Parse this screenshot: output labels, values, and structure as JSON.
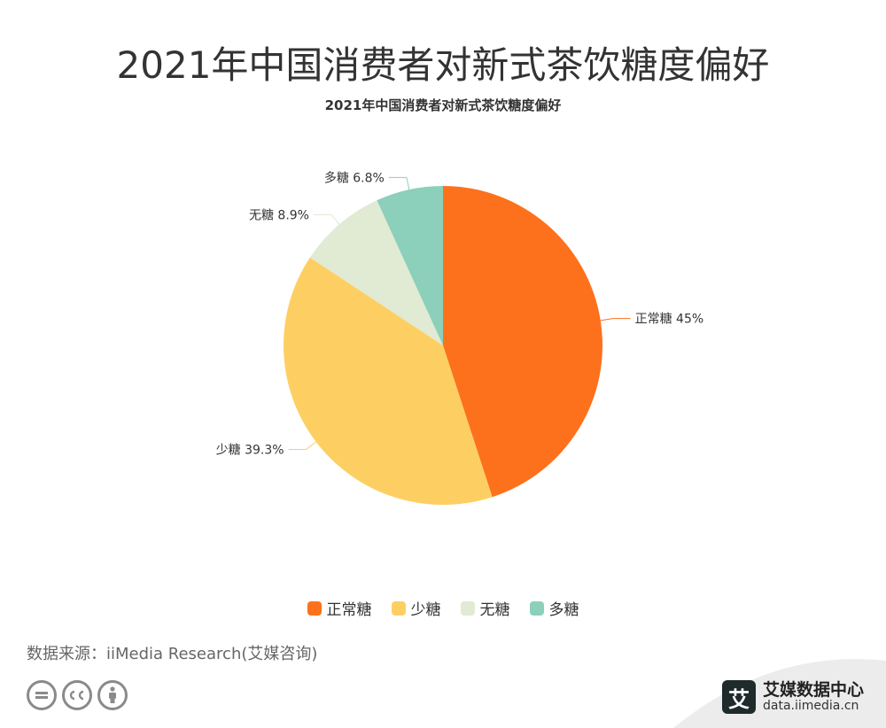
{
  "page": {
    "title": "2021年中国消费者对新式茶饮糖度偏好",
    "source": "数据来源：iiMedia Research(艾媒咨询)"
  },
  "chart_data": {
    "type": "pie",
    "title": "2021年中国消费者对新式茶饮糖度偏好",
    "unit": "%",
    "slices": [
      {
        "label": "正常糖",
        "value": 45,
        "display": "正常糖 45%",
        "color": "#fd711c"
      },
      {
        "label": "少糖",
        "value": 39.3,
        "display": "少糖 39.3%",
        "color": "#fdcf63"
      },
      {
        "label": "无糖",
        "value": 8.9,
        "display": "无糖 8.9%",
        "color": "#e1ead3"
      },
      {
        "label": "多糖",
        "value": 6.8,
        "display": "多糖 6.8%",
        "color": "#8ccfbb"
      }
    ],
    "legend_position": "bottom"
  },
  "brand": {
    "logo_char": "艾",
    "name": "艾媒数据中心",
    "url": "data.iimedia.cn"
  },
  "icons": [
    "cc-equal-icon",
    "cc-cc-icon",
    "cc-person-icon"
  ]
}
